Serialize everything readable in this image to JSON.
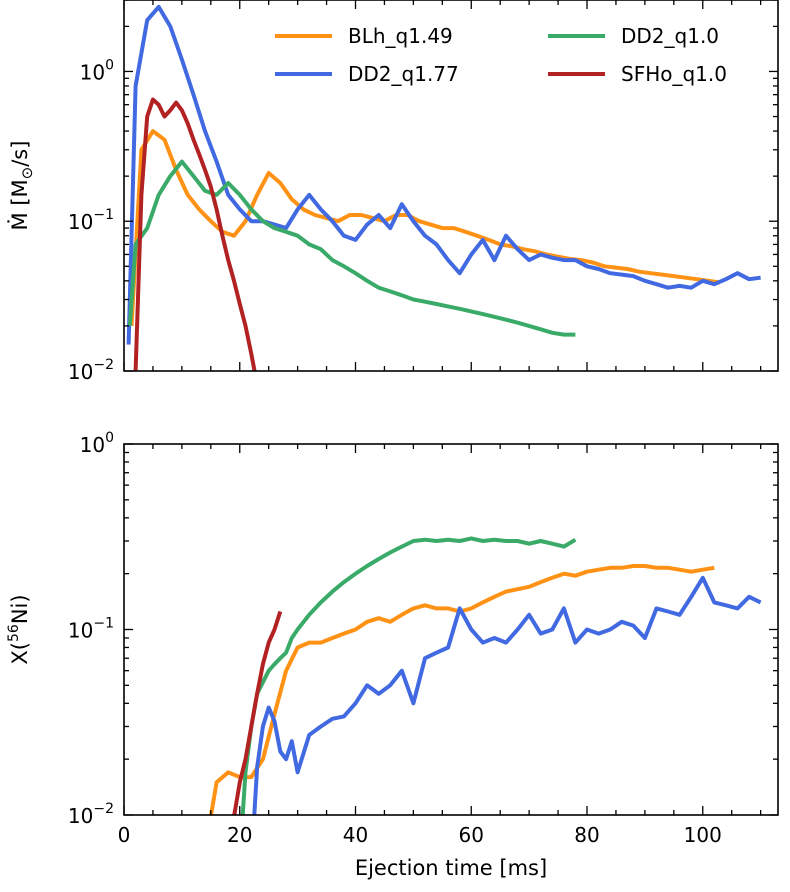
{
  "chart_data": [
    {
      "type": "line",
      "yscale": "log",
      "xlim": [
        0,
        113
      ],
      "ylim": [
        0.01,
        3
      ],
      "xlabel": "",
      "ylabel": "Ṁ [M⊙/s]",
      "ylabel_parts": {
        "main": "Ṁ [M",
        "sub": "⊙",
        "tail": "/s]"
      },
      "yticks": [
        {
          "v": 1,
          "base": "10",
          "exp": "0"
        },
        {
          "v": 0.1,
          "base": "10",
          "exp": "−1"
        },
        {
          "v": 0.01,
          "base": "10",
          "exp": "−2"
        }
      ],
      "series": [
        {
          "name": "BLh_q1.49",
          "color": "#ff9214",
          "x": [
            1.3,
            3,
            5,
            7,
            9,
            11,
            13,
            15,
            17,
            19,
            21,
            23,
            25,
            27,
            29,
            31,
            33,
            35,
            37,
            39,
            41,
            43,
            45,
            47,
            49,
            51,
            53,
            55,
            57,
            59,
            61,
            63,
            65,
            67,
            69,
            71,
            73,
            75,
            77,
            79,
            81,
            83,
            85,
            87,
            89,
            91,
            93,
            95,
            97,
            99,
            101,
            103
          ],
          "y": [
            0.02,
            0.3,
            0.4,
            0.35,
            0.22,
            0.15,
            0.12,
            0.1,
            0.085,
            0.08,
            0.1,
            0.15,
            0.21,
            0.18,
            0.14,
            0.12,
            0.11,
            0.105,
            0.1,
            0.11,
            0.11,
            0.105,
            0.1,
            0.11,
            0.11,
            0.1,
            0.095,
            0.09,
            0.09,
            0.085,
            0.08,
            0.075,
            0.07,
            0.068,
            0.065,
            0.063,
            0.06,
            0.058,
            0.056,
            0.055,
            0.053,
            0.05,
            0.049,
            0.048,
            0.046,
            0.045,
            0.044,
            0.043,
            0.042,
            0.041,
            0.04,
            0.039
          ]
        },
        {
          "name": "DD2_q1.77",
          "color": "#4169e1",
          "x": [
            0.8,
            2,
            4,
            6,
            8,
            10,
            12,
            14,
            16,
            18,
            20,
            22,
            24,
            26,
            28,
            30,
            32,
            34,
            36,
            38,
            40,
            42,
            44,
            46,
            48,
            50,
            52,
            54,
            56,
            58,
            60,
            62,
            64,
            66,
            68,
            70,
            72,
            74,
            76,
            78,
            80,
            82,
            84,
            86,
            88,
            90,
            92,
            94,
            96,
            98,
            100,
            102,
            104,
            106,
            108,
            110
          ],
          "y": [
            0.015,
            0.8,
            2.2,
            2.7,
            2.0,
            1.2,
            0.7,
            0.4,
            0.25,
            0.15,
            0.12,
            0.1,
            0.1,
            0.095,
            0.09,
            0.12,
            0.15,
            0.12,
            0.1,
            0.08,
            0.075,
            0.095,
            0.11,
            0.09,
            0.13,
            0.1,
            0.08,
            0.07,
            0.055,
            0.045,
            0.06,
            0.075,
            0.055,
            0.08,
            0.065,
            0.055,
            0.06,
            0.057,
            0.055,
            0.055,
            0.05,
            0.048,
            0.045,
            0.044,
            0.043,
            0.04,
            0.038,
            0.036,
            0.037,
            0.036,
            0.04,
            0.038,
            0.041,
            0.045,
            0.041,
            0.042
          ]
        },
        {
          "name": "DD2_q1.0",
          "color": "#3aaa69",
          "x": [
            1,
            2,
            4,
            6,
            8,
            10,
            12,
            14,
            16,
            18,
            20,
            22,
            24,
            26,
            28,
            30,
            32,
            34,
            36,
            38,
            40,
            42,
            44,
            46,
            48,
            50,
            52,
            54,
            56,
            58,
            60,
            62,
            64,
            66,
            68,
            70,
            72,
            74,
            76,
            78
          ],
          "y": [
            0.02,
            0.07,
            0.09,
            0.15,
            0.2,
            0.25,
            0.2,
            0.16,
            0.15,
            0.18,
            0.15,
            0.12,
            0.1,
            0.09,
            0.085,
            0.08,
            0.07,
            0.065,
            0.055,
            0.05,
            0.045,
            0.04,
            0.036,
            0.034,
            0.032,
            0.03,
            0.029,
            0.028,
            0.027,
            0.026,
            0.025,
            0.024,
            0.023,
            0.022,
            0.021,
            0.02,
            0.019,
            0.018,
            0.0175,
            0.0175
          ]
        },
        {
          "name": "SFHo_q1.0",
          "color": "#b22222",
          "x": [
            2,
            3,
            4,
            5,
            6,
            7,
            8,
            9,
            10,
            11,
            12,
            13,
            14,
            15,
            16,
            17,
            18,
            19,
            20,
            21,
            22,
            22.6
          ],
          "y": [
            0.01,
            0.15,
            0.5,
            0.65,
            0.6,
            0.5,
            0.55,
            0.62,
            0.55,
            0.45,
            0.35,
            0.28,
            0.22,
            0.17,
            0.12,
            0.08,
            0.055,
            0.04,
            0.028,
            0.02,
            0.013,
            0.0098
          ]
        }
      ],
      "legend": {
        "placement": "top-right",
        "columns": 2
      }
    },
    {
      "type": "line",
      "yscale": "log",
      "xlim": [
        0,
        113
      ],
      "ylim": [
        0.01,
        1
      ],
      "xlabel": "Ejection time [ms]",
      "ylabel": "X(56Ni)",
      "ylabel_parts": {
        "main": "X(",
        "sup": "56",
        "tail": "Ni)"
      },
      "xticks": [
        0,
        20,
        40,
        60,
        80,
        100
      ],
      "yticks": [
        {
          "v": 1,
          "base": "10",
          "exp": "0"
        },
        {
          "v": 0.1,
          "base": "10",
          "exp": "−1"
        },
        {
          "v": 0.01,
          "base": "10",
          "exp": "−2"
        }
      ],
      "series": [
        {
          "name": "BLh_q1.49",
          "color": "#ff9214",
          "x": [
            15,
            16,
            18,
            20,
            22,
            24,
            26,
            28,
            30,
            32,
            34,
            36,
            38,
            40,
            42,
            44,
            46,
            48,
            50,
            52,
            54,
            56,
            58,
            60,
            62,
            64,
            66,
            68,
            70,
            72,
            74,
            76,
            78,
            80,
            82,
            84,
            86,
            88,
            90,
            92,
            94,
            96,
            98,
            100,
            102
          ],
          "y": [
            0.0098,
            0.015,
            0.017,
            0.016,
            0.016,
            0.02,
            0.035,
            0.06,
            0.08,
            0.085,
            0.085,
            0.09,
            0.095,
            0.1,
            0.11,
            0.115,
            0.11,
            0.12,
            0.13,
            0.135,
            0.13,
            0.13,
            0.125,
            0.13,
            0.14,
            0.15,
            0.16,
            0.165,
            0.17,
            0.18,
            0.19,
            0.2,
            0.195,
            0.205,
            0.21,
            0.215,
            0.215,
            0.22,
            0.22,
            0.215,
            0.215,
            0.21,
            0.205,
            0.21,
            0.215
          ]
        },
        {
          "name": "DD2_q1.77",
          "color": "#4169e1",
          "x": [
            22.5,
            23,
            24,
            25,
            26,
            27,
            28,
            29,
            30,
            32,
            34,
            36,
            38,
            40,
            42,
            44,
            46,
            48,
            50,
            52,
            54,
            56,
            58,
            60,
            62,
            64,
            66,
            68,
            70,
            72,
            74,
            76,
            78,
            80,
            82,
            84,
            86,
            88,
            90,
            92,
            94,
            96,
            98,
            100,
            102,
            104,
            106,
            108,
            110
          ],
          "y": [
            0.0098,
            0.018,
            0.03,
            0.038,
            0.032,
            0.022,
            0.02,
            0.025,
            0.017,
            0.027,
            0.03,
            0.033,
            0.034,
            0.04,
            0.05,
            0.045,
            0.05,
            0.06,
            0.04,
            0.07,
            0.075,
            0.08,
            0.13,
            0.1,
            0.085,
            0.09,
            0.085,
            0.1,
            0.12,
            0.095,
            0.1,
            0.13,
            0.085,
            0.1,
            0.095,
            0.1,
            0.11,
            0.105,
            0.09,
            0.13,
            0.125,
            0.12,
            0.15,
            0.19,
            0.14,
            0.135,
            0.13,
            0.15,
            0.14
          ]
        },
        {
          "name": "DD2_q1.0",
          "color": "#3aaa69",
          "x": [
            20.5,
            21,
            22,
            23,
            24,
            25,
            26,
            27,
            28,
            29,
            30,
            32,
            34,
            36,
            38,
            40,
            42,
            44,
            46,
            48,
            50,
            52,
            54,
            56,
            58,
            60,
            62,
            64,
            66,
            68,
            70,
            72,
            74,
            76,
            78
          ],
          "y": [
            0.0098,
            0.017,
            0.03,
            0.045,
            0.052,
            0.06,
            0.065,
            0.07,
            0.075,
            0.09,
            0.1,
            0.12,
            0.14,
            0.16,
            0.18,
            0.2,
            0.22,
            0.24,
            0.26,
            0.28,
            0.3,
            0.305,
            0.3,
            0.305,
            0.3,
            0.31,
            0.3,
            0.305,
            0.3,
            0.3,
            0.29,
            0.3,
            0.29,
            0.28,
            0.305
          ]
        },
        {
          "name": "SFHo_q1.0",
          "color": "#b22222",
          "x": [
            19,
            20,
            21,
            22,
            23,
            24,
            25,
            26,
            27
          ],
          "y": [
            0.0098,
            0.015,
            0.02,
            0.03,
            0.045,
            0.065,
            0.085,
            0.1,
            0.125
          ]
        }
      ]
    }
  ]
}
